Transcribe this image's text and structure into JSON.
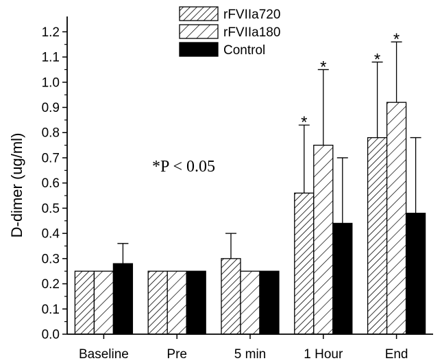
{
  "chart_data": {
    "type": "bar",
    "title": "",
    "xlabel": "",
    "ylabel": "D-dimer (ug/ml)",
    "categories": [
      "Baseline",
      "Pre",
      "5 min",
      "1 Hour",
      "End"
    ],
    "ylim": [
      0,
      1.25
    ],
    "yticks": [
      "0.0",
      "0.1",
      "0.2",
      "0.3",
      "0.4",
      "0.5",
      "0.6",
      "0.7",
      "0.8",
      "0.9",
      "1.0",
      "1.1",
      "1.2"
    ],
    "series": [
      {
        "name": "rFVIIa720",
        "pattern": "dense-hatch",
        "values": [
          0.25,
          0.25,
          0.3,
          0.56,
          0.78
        ],
        "error": [
          0,
          0,
          0.1,
          0.27,
          0.3
        ],
        "significant": [
          false,
          false,
          false,
          true,
          true
        ]
      },
      {
        "name": "rFVIIa180",
        "pattern": "sparse-hatch",
        "values": [
          0.25,
          0.25,
          0.25,
          0.75,
          0.92
        ],
        "error": [
          0,
          0,
          0,
          0.3,
          0.24
        ],
        "significant": [
          false,
          false,
          false,
          true,
          true
        ]
      },
      {
        "name": "Control",
        "pattern": "solid",
        "values": [
          0.28,
          0.25,
          0.25,
          0.44,
          0.48
        ],
        "error": [
          0.08,
          0,
          0,
          0.26,
          0.3
        ],
        "significant": [
          false,
          false,
          false,
          false,
          false
        ]
      }
    ],
    "annotation": "*P < 0.05",
    "significance_marker": "*",
    "legend_position": "top-center",
    "grid": false
  }
}
